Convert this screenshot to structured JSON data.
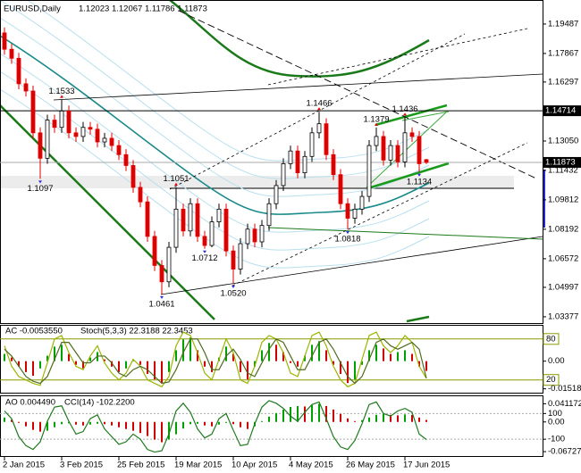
{
  "chart_data": [
    {
      "type": "candlestick",
      "title": "EURUSD,Daily",
      "subtitle": "1.12023 1.12067 1.11786 1.11873",
      "categories": [
        "2 Jan 2015",
        null,
        null,
        null,
        null,
        null,
        null,
        null,
        "3 Feb 2015",
        null,
        null,
        null,
        null,
        null,
        null,
        null,
        "25 Feb 2015",
        null,
        null,
        null,
        null,
        null,
        null,
        null,
        "19 Mar 2015",
        null,
        null,
        null,
        null,
        null,
        null,
        null,
        "10 Apr 2015",
        null,
        null,
        null,
        null,
        null,
        null,
        null,
        "4 May 2015",
        null,
        null,
        null,
        null,
        null,
        null,
        null,
        "26 May 2015",
        null,
        null,
        null,
        null,
        null,
        null,
        null,
        "17 Jun 2015",
        null,
        null,
        null
      ],
      "open": [
        1.19,
        1.181,
        1.176,
        1.162,
        1.158,
        1.135,
        1.121,
        1.142,
        1.138,
        1.147,
        1.135,
        1.133,
        1.138,
        1.137,
        1.13,
        1.132,
        1.128,
        1.123,
        1.117,
        1.105,
        1.097,
        1.078,
        1.062,
        1.053,
        1.072,
        1.093,
        1.081,
        1.096,
        1.078,
        1.073,
        1.086,
        1.093,
        1.07,
        1.06,
        1.074,
        1.082,
        1.075,
        1.084,
        1.096,
        1.106,
        1.118,
        1.125,
        1.113,
        1.122,
        1.135,
        1.14,
        1.123,
        1.112,
        1.096,
        1.088,
        1.093,
        1.1,
        1.128,
        1.133,
        1.12,
        1.128,
        1.119,
        1.135,
        1.133,
        1.12023
      ],
      "high": [
        1.193,
        1.184,
        1.179,
        1.165,
        1.161,
        1.138,
        1.145,
        1.145,
        1.1533,
        1.15,
        1.138,
        1.141,
        1.141,
        1.14,
        1.135,
        1.135,
        1.131,
        1.126,
        1.12,
        1.108,
        1.1,
        1.081,
        1.065,
        1.075,
        1.1051,
        1.096,
        1.099,
        1.099,
        1.081,
        1.089,
        1.096,
        1.096,
        1.073,
        1.077,
        1.085,
        1.085,
        1.087,
        1.099,
        1.109,
        1.121,
        1.128,
        1.128,
        1.125,
        1.138,
        1.1466,
        1.143,
        1.126,
        1.115,
        1.099,
        1.096,
        1.103,
        1.131,
        1.1379,
        1.136,
        1.131,
        1.131,
        1.1436,
        1.138,
        1.136,
        1.12067
      ],
      "low": [
        1.178,
        1.173,
        1.159,
        1.155,
        1.132,
        1.1097,
        1.118,
        1.135,
        1.135,
        1.132,
        1.13,
        1.13,
        1.134,
        1.127,
        1.127,
        1.125,
        1.12,
        1.114,
        1.102,
        1.094,
        1.075,
        1.059,
        1.0461,
        1.05,
        1.069,
        1.078,
        1.078,
        1.075,
        1.0712,
        1.072,
        1.083,
        1.067,
        1.052,
        1.057,
        1.071,
        1.072,
        1.072,
        1.081,
        1.093,
        1.103,
        1.115,
        1.11,
        1.11,
        1.119,
        1.132,
        1.12,
        1.109,
        1.093,
        1.0818,
        1.085,
        1.09,
        1.097,
        1.125,
        1.117,
        1.117,
        1.116,
        1.116,
        1.13,
        1.1134,
        1.11786
      ],
      "close": [
        1.181,
        1.176,
        1.162,
        1.158,
        1.135,
        1.121,
        1.142,
        1.138,
        1.147,
        1.135,
        1.133,
        1.138,
        1.137,
        1.13,
        1.132,
        1.128,
        1.123,
        1.117,
        1.105,
        1.097,
        1.078,
        1.062,
        1.053,
        1.072,
        1.093,
        1.081,
        1.096,
        1.078,
        1.073,
        1.086,
        1.093,
        1.07,
        1.06,
        1.074,
        1.082,
        1.075,
        1.084,
        1.096,
        1.106,
        1.118,
        1.125,
        1.113,
        1.122,
        1.135,
        1.14,
        1.123,
        1.112,
        1.096,
        1.088,
        1.093,
        1.1,
        1.128,
        1.133,
        1.12,
        1.128,
        1.119,
        1.135,
        1.133,
        1.118,
        1.11873
      ],
      "colors": [
        "#000000",
        "#e00000"
      ],
      "ylim": [
        1.0303,
        1.2081
      ],
      "yticks": [
        {
          "value": 1.19487,
          "label": "1.19487"
        },
        {
          "value": 1.17867,
          "label": "1.17867"
        },
        {
          "value": 1.16297,
          "label": "1.16297"
        },
        {
          "value": 1.1305,
          "label": "1.13050"
        },
        {
          "value": 1.11432,
          "label": "1.11432"
        },
        {
          "value": 1.09812,
          "label": "1.09812"
        },
        {
          "value": 1.08192,
          "label": "1.08192"
        },
        {
          "value": 1.06572,
          "label": "1.06572"
        },
        {
          "value": 1.04997,
          "label": "1.04997"
        },
        {
          "value": 1.03377,
          "label": "1.03377"
        }
      ],
      "price_lines": [
        {
          "value": 1.14714,
          "label": "1.14714"
        },
        {
          "value": 1.11873,
          "label": "1.11873"
        }
      ],
      "annotations": [
        {
          "value": 1.1533,
          "label": "1.1533"
        },
        {
          "value": 1.1097,
          "label": "1.1097"
        },
        {
          "value": 1.0461,
          "label": "1.0461"
        },
        {
          "value": 1.1051,
          "label": "1.1051"
        },
        {
          "value": 1.0712,
          "label": "1.0712"
        },
        {
          "value": 1.052,
          "label": "1.0520"
        },
        {
          "value": 1.1466,
          "label": "1.1466"
        },
        {
          "value": 1.0818,
          "label": "1.0818"
        },
        {
          "value": 1.1379,
          "label": "1.1379"
        },
        {
          "value": 1.1436,
          "label": "1.1436"
        },
        {
          "value": 1.1134,
          "label": "1.1134"
        }
      ]
    },
    {
      "type": "oscillator",
      "title": "AC -0.0053550",
      "subtitle": "Stoch(5,3,3) 22.3188 22.3453",
      "ylim": [
        0,
        100
      ],
      "yticks": [
        80,
        20
      ],
      "y2lim": [
        -0.0178,
        0.0197
      ],
      "y2ticks": [
        {
          "value": 0,
          "label": "0.00"
        },
        {
          "value": -0.015182,
          "label": "-0.015182"
        }
      ],
      "series": [
        {
          "type": "bar",
          "axis": "y2",
          "colors": [
            "#00a000",
            "#d00000"
          ],
          "values": [
            0.004,
            0.002,
            -0.003,
            -0.006,
            -0.008,
            -0.004,
            0.003,
            0.008,
            0.009,
            0.004,
            -0.002,
            -0.004,
            0.002,
            0.005,
            0.001,
            -0.003,
            -0.006,
            -0.004,
            0.001,
            -0.002,
            -0.007,
            -0.01,
            -0.012,
            -0.006,
            0.006,
            0.012,
            0.013,
            0.006,
            -0.003,
            -0.006,
            0.002,
            0.008,
            0.004,
            -0.006,
            -0.01,
            -0.003,
            0.006,
            0.01,
            0.009,
            0.005,
            -0.001,
            -0.003,
            0.003,
            0.009,
            0.011,
            0.006,
            -0.002,
            -0.007,
            -0.012,
            -0.01,
            -0.002,
            0.006,
            0.009,
            0.007,
            0.004,
            0.005,
            0.006,
            0.004,
            -0.003,
            -0.005355
          ]
        },
        {
          "type": "line",
          "color": "#9cb400",
          "values": [
            70,
            40,
            25,
            20,
            15,
            12,
            45,
            80,
            85,
            60,
            40,
            35,
            55,
            70,
            45,
            30,
            20,
            30,
            50,
            40,
            20,
            15,
            10,
            25,
            70,
            90,
            85,
            60,
            30,
            20,
            50,
            80,
            60,
            20,
            15,
            40,
            75,
            85,
            80,
            60,
            30,
            25,
            55,
            85,
            90,
            70,
            40,
            20,
            10,
            15,
            50,
            85,
            90,
            70,
            60,
            70,
            85,
            75,
            40,
            22.3188
          ]
        },
        {
          "type": "line",
          "color": "#4f6b1f",
          "values": [
            65,
            55,
            40,
            25,
            18,
            15,
            25,
            50,
            75,
            75,
            60,
            45,
            45,
            55,
            55,
            45,
            30,
            25,
            35,
            40,
            35,
            25,
            15,
            17,
            35,
            60,
            80,
            80,
            60,
            35,
            35,
            55,
            65,
            50,
            30,
            25,
            45,
            65,
            80,
            75,
            55,
            35,
            35,
            55,
            75,
            80,
            65,
            45,
            25,
            15,
            25,
            50,
            75,
            80,
            70,
            65,
            70,
            75,
            65,
            22.3453
          ]
        }
      ]
    },
    {
      "type": "oscillator",
      "title": "AO 0.004490",
      "subtitle": "CCI(14) -102.2200",
      "ylim": [
        -238,
        238
      ],
      "yticks": [
        100,
        -100
      ],
      "y2lim": [
        -0.0793,
        0.0592
      ],
      "y2ticks": [
        {
          "value": 0.041172,
          "label": "0.041172"
        },
        {
          "value": 0,
          "label": "0.00"
        },
        {
          "value": -0.06727,
          "label": "-0.06727"
        }
      ],
      "series": [
        {
          "type": "bar",
          "axis": "y2",
          "colors": [
            "#00a000",
            "#d00000"
          ],
          "values": [
            0.01,
            0.005,
            -0.002,
            -0.01,
            -0.018,
            -0.022,
            -0.02,
            -0.012,
            -0.005,
            -0.003,
            -0.006,
            -0.008,
            -0.006,
            -0.004,
            -0.005,
            -0.008,
            -0.012,
            -0.016,
            -0.02,
            -0.025,
            -0.032,
            -0.04,
            -0.046,
            -0.04,
            -0.028,
            -0.015,
            -0.005,
            -0.004,
            -0.008,
            -0.01,
            -0.006,
            -0.002,
            -0.005,
            -0.012,
            -0.016,
            -0.01,
            0.002,
            0.012,
            0.02,
            0.028,
            0.034,
            0.036,
            0.035,
            0.038,
            0.041,
            0.036,
            0.028,
            0.018,
            0.008,
            0.002,
            0.004,
            0.01,
            0.016,
            0.018,
            0.016,
            0.015,
            0.017,
            0.016,
            0.01,
            0.00449
          ]
        },
        {
          "type": "line",
          "color": "#1f7a1f",
          "values": [
            120,
            60,
            -80,
            -150,
            -180,
            -120,
            40,
            150,
            160,
            40,
            -60,
            -40,
            60,
            90,
            -20,
            -80,
            -140,
            -120,
            -60,
            -100,
            -180,
            -200,
            -190,
            -60,
            120,
            180,
            110,
            -20,
            -90,
            -60,
            60,
            100,
            -30,
            -150,
            -140,
            20,
            150,
            200,
            180,
            140,
            80,
            40,
            110,
            170,
            190,
            60,
            -80,
            -160,
            -180,
            -110,
            20,
            170,
            190,
            100,
            80,
            120,
            140,
            110,
            -60,
            -102.22
          ]
        }
      ]
    }
  ]
}
